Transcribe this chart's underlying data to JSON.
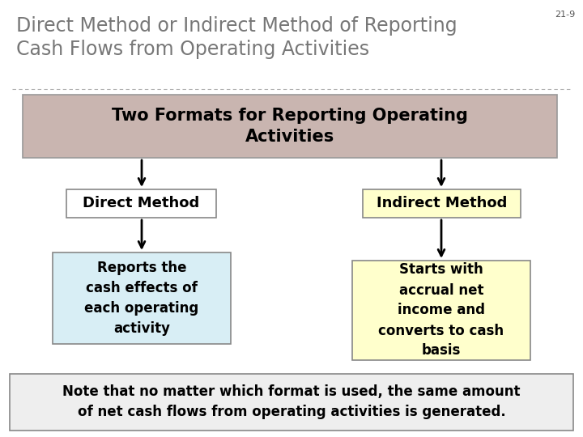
{
  "title": "Direct Method or Indirect Method of Reporting\nCash Flows from Operating Activities",
  "slide_number": "21-9",
  "title_fontsize": 17,
  "title_color": "#777777",
  "background_color": "#ffffff",
  "top_box": {
    "text": "Two Formats for Reporting Operating\nActivities",
    "bg_color": "#c9b5b0",
    "border_color": "#999999",
    "fontsize": 15,
    "font_color": "#000000"
  },
  "left_box1": {
    "text": "Direct Method",
    "bg_color": "#ffffff",
    "border_color": "#888888",
    "fontsize": 13,
    "font_color": "#000000"
  },
  "left_box2": {
    "text": "Reports the\ncash effects of\neach operating\nactivity",
    "bg_color": "#d8eef5",
    "border_color": "#888888",
    "fontsize": 12,
    "font_color": "#000000"
  },
  "right_box1": {
    "text": "Indirect Method",
    "bg_color": "#ffffcc",
    "border_color": "#888888",
    "fontsize": 13,
    "font_color": "#000000"
  },
  "right_box2": {
    "text": "Starts with\naccrual net\nincome and\nconverts to cash\nbasis",
    "bg_color": "#ffffcc",
    "border_color": "#888888",
    "fontsize": 12,
    "font_color": "#000000"
  },
  "bottom_box": {
    "text": "Note that no matter which format is used, the same amount\nof net cash flows from operating activities is generated.",
    "bg_color": "#eeeeee",
    "border_color": "#888888",
    "fontsize": 12,
    "font_color": "#000000"
  }
}
